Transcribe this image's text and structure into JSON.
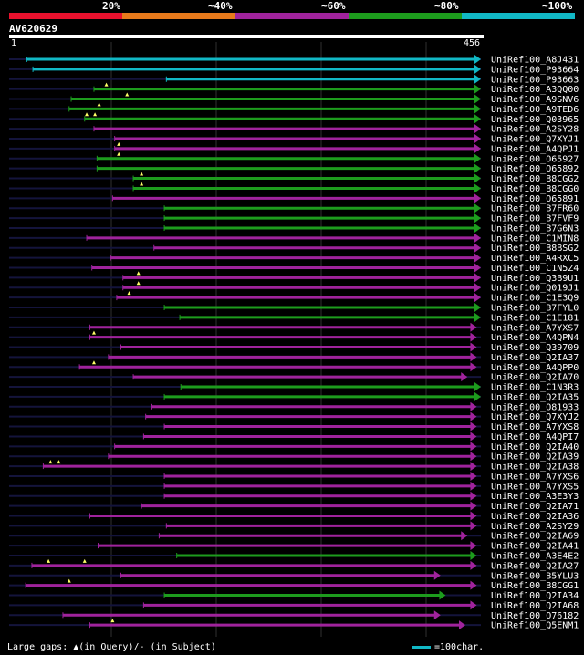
{
  "legend": {
    "labels": [
      "20%",
      "~40%",
      "~60%",
      "~80%",
      "~100%"
    ],
    "colors": [
      "#e8112d",
      "#e87a1b",
      "#a0239c",
      "#1d9c1d",
      "#11b8c5"
    ]
  },
  "query": {
    "id": "AV620629",
    "start": "1",
    "end": "456"
  },
  "footer": {
    "gaps_note": "Large gaps: ▲(in Query)/- (in Subject)",
    "scale_note": "=100char."
  },
  "color_map": {
    "cyan": "#11b8c5",
    "green": "#1d9c1d",
    "purple": "#a0239c"
  },
  "hits": [
    {
      "id": "UniRef100_A8J431",
      "color": "cyan",
      "start": 17,
      "end": 456,
      "gaps": []
    },
    {
      "id": "UniRef100_P93664",
      "color": "cyan",
      "start": 23,
      "end": 456,
      "gaps": []
    },
    {
      "id": "UniRef100_P93663",
      "color": "cyan",
      "start": 152,
      "end": 456,
      "gaps": []
    },
    {
      "id": "UniRef100_A3QQ00",
      "color": "green",
      "start": 82,
      "end": 456,
      "gaps": [
        94
      ]
    },
    {
      "id": "UniRef100_A9SNV6",
      "color": "green",
      "start": 60,
      "end": 456,
      "gaps": [
        114
      ]
    },
    {
      "id": "UniRef100_A9TED6",
      "color": "green",
      "start": 58,
      "end": 456,
      "gaps": [
        87
      ]
    },
    {
      "id": "UniRef100_Q03965",
      "color": "green",
      "start": 73,
      "end": 456,
      "gaps": [
        75,
        83
      ]
    },
    {
      "id": "UniRef100_A2SY28",
      "color": "purple",
      "start": 82,
      "end": 456,
      "gaps": []
    },
    {
      "id": "UniRef100_Q7XYJ1",
      "color": "purple",
      "start": 102,
      "end": 456,
      "gaps": []
    },
    {
      "id": "UniRef100_A4QPJ1",
      "color": "purple",
      "start": 102,
      "end": 456,
      "gaps": [
        106
      ]
    },
    {
      "id": "UniRef100_O65927",
      "color": "green",
      "start": 85,
      "end": 456,
      "gaps": [
        106
      ]
    },
    {
      "id": "UniRef100_O65892",
      "color": "green",
      "start": 85,
      "end": 456,
      "gaps": []
    },
    {
      "id": "UniRef100_B8CGG2",
      "color": "green",
      "start": 120,
      "end": 456,
      "gaps": [
        128
      ]
    },
    {
      "id": "UniRef100_B8CGG0",
      "color": "green",
      "start": 120,
      "end": 456,
      "gaps": [
        128
      ]
    },
    {
      "id": "UniRef100_O65891",
      "color": "purple",
      "start": 100,
      "end": 456,
      "gaps": []
    },
    {
      "id": "UniRef100_B7FR60",
      "color": "green",
      "start": 150,
      "end": 456,
      "gaps": []
    },
    {
      "id": "UniRef100_B7FVF9",
      "color": "green",
      "start": 150,
      "end": 456,
      "gaps": []
    },
    {
      "id": "UniRef100_B7G6N3",
      "color": "green",
      "start": 150,
      "end": 456,
      "gaps": []
    },
    {
      "id": "UniRef100_C1MIN8",
      "color": "purple",
      "start": 75,
      "end": 456,
      "gaps": []
    },
    {
      "id": "UniRef100_B8BSG2",
      "color": "purple",
      "start": 140,
      "end": 456,
      "gaps": []
    },
    {
      "id": "UniRef100_A4RXC5",
      "color": "purple",
      "start": 98,
      "end": 456,
      "gaps": []
    },
    {
      "id": "UniRef100_C1N5Z4",
      "color": "purple",
      "start": 80,
      "end": 456,
      "gaps": []
    },
    {
      "id": "UniRef100_Q3B9U1",
      "color": "purple",
      "start": 110,
      "end": 456,
      "gaps": [
        125
      ]
    },
    {
      "id": "UniRef100_Q019J1",
      "color": "purple",
      "start": 110,
      "end": 456,
      "gaps": [
        125
      ]
    },
    {
      "id": "UniRef100_C1E3Q9",
      "color": "purple",
      "start": 104,
      "end": 456,
      "gaps": [
        116
      ]
    },
    {
      "id": "UniRef100_B7FYL0",
      "color": "green",
      "start": 150,
      "end": 456,
      "gaps": []
    },
    {
      "id": "UniRef100_C1E181",
      "color": "green",
      "start": 165,
      "end": 456,
      "gaps": []
    },
    {
      "id": "UniRef100_A7YXS7",
      "color": "purple",
      "start": 78,
      "end": 452,
      "gaps": []
    },
    {
      "id": "UniRef100_A4QPN4",
      "color": "purple",
      "start": 78,
      "end": 452,
      "gaps": [
        82
      ]
    },
    {
      "id": "UniRef100_Q39709",
      "color": "purple",
      "start": 108,
      "end": 452,
      "gaps": []
    },
    {
      "id": "UniRef100_Q2IA37",
      "color": "purple",
      "start": 96,
      "end": 452,
      "gaps": []
    },
    {
      "id": "UniRef100_A4QPP0",
      "color": "purple",
      "start": 68,
      "end": 452,
      "gaps": [
        82
      ]
    },
    {
      "id": "UniRef100_Q2IA70",
      "color": "purple",
      "start": 120,
      "end": 443,
      "gaps": []
    },
    {
      "id": "UniRef100_C1N3R3",
      "color": "green",
      "start": 166,
      "end": 456,
      "gaps": []
    },
    {
      "id": "UniRef100_Q2IA35",
      "color": "green",
      "start": 150,
      "end": 456,
      "gaps": []
    },
    {
      "id": "UniRef100_O81933",
      "color": "purple",
      "start": 138,
      "end": 452,
      "gaps": []
    },
    {
      "id": "UniRef100_Q7XYJ2",
      "color": "purple",
      "start": 132,
      "end": 452,
      "gaps": []
    },
    {
      "id": "UniRef100_A7YXS8",
      "color": "purple",
      "start": 150,
      "end": 452,
      "gaps": []
    },
    {
      "id": "UniRef100_A4QPI7",
      "color": "purple",
      "start": 130,
      "end": 452,
      "gaps": []
    },
    {
      "id": "UniRef100_Q2IA40",
      "color": "purple",
      "start": 102,
      "end": 452,
      "gaps": []
    },
    {
      "id": "UniRef100_Q2IA39",
      "color": "purple",
      "start": 96,
      "end": 452,
      "gaps": []
    },
    {
      "id": "UniRef100_Q2IA38",
      "color": "purple",
      "start": 33,
      "end": 452,
      "gaps": [
        40,
        48
      ]
    },
    {
      "id": "UniRef100_A7YXS6",
      "color": "purple",
      "start": 150,
      "end": 452,
      "gaps": []
    },
    {
      "id": "UniRef100_A7YXS5",
      "color": "purple",
      "start": 150,
      "end": 452,
      "gaps": []
    },
    {
      "id": "UniRef100_A3E3Y3",
      "color": "purple",
      "start": 150,
      "end": 452,
      "gaps": []
    },
    {
      "id": "UniRef100_Q2IA71",
      "color": "purple",
      "start": 128,
      "end": 452,
      "gaps": []
    },
    {
      "id": "UniRef100_Q2IA36",
      "color": "purple",
      "start": 78,
      "end": 452,
      "gaps": []
    },
    {
      "id": "UniRef100_A2SY29",
      "color": "purple",
      "start": 152,
      "end": 452,
      "gaps": []
    },
    {
      "id": "UniRef100_Q2IA69",
      "color": "purple",
      "start": 145,
      "end": 443,
      "gaps": []
    },
    {
      "id": "UniRef100_Q2IA41",
      "color": "purple",
      "start": 86,
      "end": 452,
      "gaps": []
    },
    {
      "id": "UniRef100_A3E4E2",
      "color": "green",
      "start": 162,
      "end": 452,
      "gaps": []
    },
    {
      "id": "UniRef100_Q2IA27",
      "color": "purple",
      "start": 22,
      "end": 452,
      "gaps": [
        38,
        73
      ]
    },
    {
      "id": "UniRef100_B5YLU3",
      "color": "purple",
      "start": 108,
      "end": 417,
      "gaps": []
    },
    {
      "id": "UniRef100_B8CGG1",
      "color": "purple",
      "start": 16,
      "end": 452,
      "gaps": [
        58
      ]
    },
    {
      "id": "UniRef100_Q2IA34",
      "color": "green",
      "start": 150,
      "end": 422,
      "gaps": []
    },
    {
      "id": "UniRef100_Q2IA68",
      "color": "purple",
      "start": 130,
      "end": 452,
      "gaps": []
    },
    {
      "id": "UniRef100_O76182",
      "color": "purple",
      "start": 52,
      "end": 417,
      "gaps": []
    },
    {
      "id": "UniRef100_Q5ENM1",
      "color": "purple",
      "start": 78,
      "end": 441,
      "gaps": [
        100
      ]
    }
  ]
}
